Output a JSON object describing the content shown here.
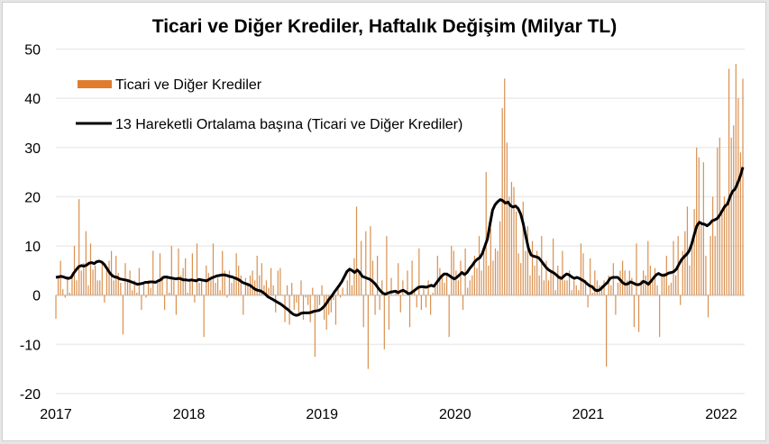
{
  "chart_data": {
    "type": "bar",
    "title": "Ticari ve Diğer Krediler, Haftalık Değişim (Milyar TL)",
    "xlabel": "",
    "ylabel": "",
    "ylim": [
      -20,
      50
    ],
    "yticks": [
      "50",
      "40",
      "30",
      "20",
      "10",
      "0",
      "-10",
      "-20"
    ],
    "ytick_values": [
      50,
      40,
      30,
      20,
      10,
      0,
      -10,
      -20
    ],
    "xticks": [
      "2017",
      "2018",
      "2019",
      "2020",
      "2021",
      "2022"
    ],
    "xtick_values": [
      2017,
      2018,
      2019,
      2020,
      2021,
      2022
    ],
    "x_start": 2017.0,
    "x_step_years": 0.01918,
    "grid": true,
    "legend": "top-left",
    "colors": {
      "bar": "#E07B30",
      "bar_thin": "#D89050",
      "line": "#000000",
      "grid": "#ececec"
    },
    "series": [
      {
        "name": "Ticari ve Diğer Krediler",
        "type": "bar",
        "values": [
          -4.8,
          3.5,
          7,
          1.2,
          -0.5,
          3.8,
          0.5,
          4.2,
          10,
          3,
          19.5,
          5,
          6.5,
          13,
          2,
          10.5,
          5.2,
          6,
          3,
          3,
          7,
          -1.5,
          5,
          7,
          9,
          3,
          8,
          4.5,
          2.5,
          -8,
          6.5,
          3,
          5,
          1,
          3,
          0.5,
          5.5,
          -3,
          2.5,
          -0.5,
          3,
          1.5,
          9,
          0,
          2.5,
          8.5,
          3.2,
          -3,
          4,
          0.5,
          10,
          3,
          -4,
          9.5,
          4,
          5.5,
          7.5,
          0.5,
          3,
          8.5,
          -1.5,
          10.5,
          2.5,
          3,
          -8.5,
          6,
          4.5,
          3,
          10.5,
          2.5,
          3.5,
          1,
          9,
          5,
          -0.5,
          5,
          2.5,
          3.5,
          8.5,
          6,
          4,
          -4,
          3.5,
          2.5,
          4,
          5,
          3,
          8,
          4,
          6.5,
          2,
          3,
          1.5,
          5.5,
          2,
          -3.5,
          5,
          5.5,
          0,
          -5.5,
          2,
          -6,
          2.5,
          -3,
          -1.5,
          -4,
          3,
          -5,
          -0.5,
          -2,
          -5.5,
          1.5,
          -12.5,
          -3,
          -2,
          2,
          -5,
          -7,
          -4,
          -3.5,
          -1,
          -6,
          2,
          -0.5,
          1.5,
          0,
          3,
          5.5,
          2,
          7.5,
          18,
          5,
          11,
          -6.5,
          13,
          -15,
          14,
          7,
          -4,
          8,
          -3,
          3,
          -11,
          12,
          -7,
          3.5,
          0,
          1,
          6.5,
          -3.5,
          3,
          0,
          5,
          -6.5,
          7,
          1,
          -2.5,
          9.5,
          -3,
          2,
          -2.5,
          3,
          -4,
          0.5,
          2,
          8,
          5.5,
          3.5,
          2.5,
          4,
          -8.5,
          10,
          9,
          5,
          3,
          7,
          -3,
          9.5,
          1.5,
          3,
          4,
          8,
          5.5,
          12,
          5,
          9,
          25,
          6,
          13.5,
          7,
          9.5,
          9,
          15,
          38,
          44,
          31,
          20,
          23,
          22,
          17,
          8.5,
          6.5,
          19,
          9,
          14,
          4,
          11,
          6,
          9,
          4,
          12,
          3,
          7,
          3,
          5,
          11.5,
          1,
          6,
          4,
          9,
          3,
          3,
          5,
          1,
          3,
          2,
          1,
          10.5,
          8.5,
          3,
          -2.5,
          7.5,
          0.5,
          5,
          3,
          2,
          2,
          3,
          -14.5,
          4,
          2,
          6.5,
          -4,
          2.5,
          5,
          7,
          5,
          3,
          5,
          3.5,
          -6.5,
          10.5,
          -7.5,
          3,
          5,
          4,
          11,
          6,
          3,
          5.5,
          2,
          -8.5,
          4,
          4.5,
          8,
          2,
          2.5,
          11,
          4,
          12,
          -2,
          9,
          13,
          18,
          6,
          10,
          17.5,
          30,
          28,
          15,
          27,
          8,
          -4.5,
          12,
          20,
          12,
          30,
          32,
          17,
          20,
          19,
          46,
          32,
          34.5,
          47,
          40,
          29,
          44
        ]
      },
      {
        "name": "13 Hareketli Ortalama başına (Ticari ve Diğer Krediler)",
        "type": "line",
        "values": [
          3.6,
          3.7,
          3.8,
          3.7,
          3.5,
          3.4,
          3.6,
          4.5,
          5.2,
          5.8,
          6.0,
          5.9,
          6.1,
          6.5,
          6.6,
          6.4,
          6.8,
          6.9,
          6.7,
          6.2,
          5.4,
          4.6,
          4.0,
          3.7,
          3.6,
          3.3,
          3.2,
          3.1,
          3.0,
          2.8,
          2.6,
          2.4,
          2.2,
          2.3,
          2.4,
          2.6,
          2.6,
          2.7,
          2.7,
          2.6,
          2.9,
          3.1,
          3.6,
          3.7,
          3.6,
          3.5,
          3.4,
          3.3,
          3.4,
          3.3,
          3.1,
          3.1,
          3.0,
          3.1,
          3.0,
          2.9,
          3.2,
          3.1,
          3.0,
          2.9,
          3.2,
          3.5,
          3.7,
          3.9,
          4.0,
          4.1,
          4.1,
          4.0,
          3.8,
          3.7,
          3.5,
          3.3,
          3.0,
          2.6,
          2.4,
          2.2,
          2.0,
          1.6,
          1.2,
          1.0,
          0.9,
          0.6,
          0.2,
          -0.3,
          -0.6,
          -0.9,
          -1.2,
          -1.5,
          -1.8,
          -2.2,
          -2.6,
          -3.0,
          -3.5,
          -3.9,
          -4.1,
          -4.0,
          -3.7,
          -3.6,
          -3.6,
          -3.6,
          -3.5,
          -3.3,
          -3.2,
          -3.1,
          -2.8,
          -2.3,
          -1.6,
          -0.8,
          -0.2,
          0.6,
          1.3,
          2.0,
          2.8,
          3.8,
          4.8,
          5.3,
          5.0,
          4.6,
          5.1,
          4.6,
          3.8,
          3.6,
          3.4,
          3.2,
          2.8,
          2.3,
          1.6,
          0.9,
          0.4,
          0.2,
          0.4,
          0.6,
          0.7,
          0.8,
          0.5,
          0.8,
          1.0,
          0.7,
          0.3,
          0.4,
          0.8,
          1.2,
          1.6,
          1.7,
          1.7,
          1.6,
          1.8,
          2.0,
          1.8,
          2.5,
          3.2,
          3.8,
          4.3,
          4.3,
          4.0,
          3.6,
          3.3,
          3.6,
          4.1,
          4.6,
          4.2,
          4.6,
          5.4,
          6.0,
          6.8,
          7.3,
          7.6,
          8.5,
          10.0,
          11.4,
          14.5,
          17.3,
          18.4,
          19.0,
          19.4,
          19.2,
          18.7,
          18.9,
          18.2,
          17.9,
          18.1,
          17.6,
          16.5,
          14.5,
          12.0,
          9.6,
          8.2,
          7.9,
          7.8,
          7.6,
          7.0,
          6.3,
          5.6,
          5.1,
          4.8,
          4.5,
          4.1,
          3.6,
          3.4,
          3.9,
          4.3,
          4.1,
          3.7,
          3.4,
          3.6,
          3.4,
          3.1,
          2.8,
          2.3,
          1.9,
          1.7,
          1.1,
          0.9,
          1.1,
          1.6,
          2.1,
          2.6,
          3.4,
          3.6,
          3.6,
          3.6,
          3.1,
          2.5,
          2.2,
          2.3,
          2.7,
          2.5,
          2.2,
          2.1,
          2.3,
          2.8,
          2.6,
          2.2,
          2.8,
          3.5,
          4.1,
          4.4,
          4.1,
          4.0,
          4.2,
          4.5,
          4.6,
          4.8,
          5.3,
          6.3,
          7.2,
          7.8,
          8.3,
          9.0,
          10.4,
          12.4,
          14.1,
          14.8,
          14.5,
          14.4,
          14.1,
          14.5,
          15.1,
          15.3,
          15.6,
          16.3,
          17.2,
          18.1,
          18.5,
          20.0,
          21.1,
          21.6,
          22.8,
          24.2,
          26.0
        ]
      }
    ]
  }
}
